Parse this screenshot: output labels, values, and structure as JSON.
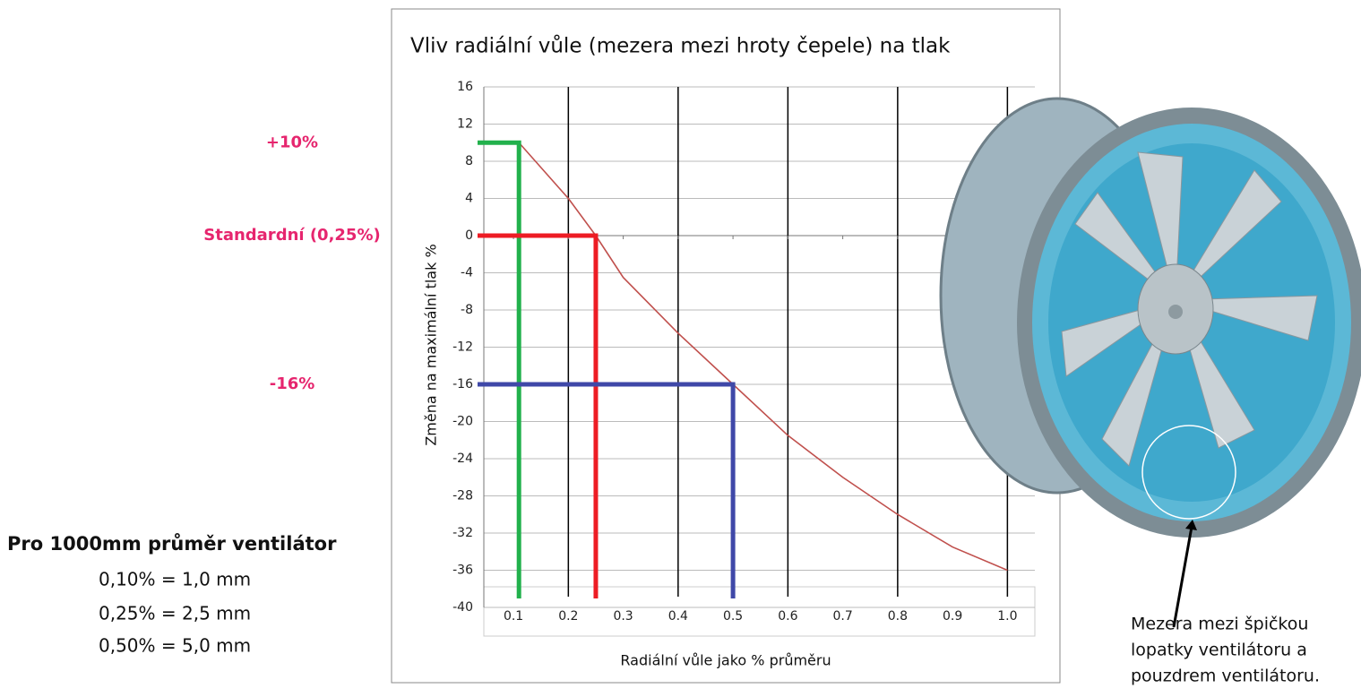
{
  "chart_data": {
    "type": "line",
    "title": "Vliv radiální vůle (mezera mezi hroty čepele) na tlak",
    "x_label": "Radiální vůle jako % průměru",
    "y_label": "Změna na maximální tlak %",
    "x": [
      0.11,
      0.2,
      0.25,
      0.3,
      0.4,
      0.5,
      0.6,
      0.7,
      0.8,
      0.9,
      1.0
    ],
    "series": [
      {
        "color": "#c0504d",
        "values": [
          10,
          4,
          0,
          -4.5,
          -10.5,
          -16,
          -21.5,
          -26,
          -30,
          -33.5,
          -36
        ]
      }
    ],
    "xlim": [
      0.046,
      1.05
    ],
    "ylim": [
      -40,
      16
    ],
    "xticks": [
      0.1,
      0.2,
      0.3,
      0.4,
      0.5,
      0.6,
      0.7,
      0.8,
      0.9,
      {
        "value": 1.0,
        "label": "1.0"
      }
    ],
    "x_grid": [
      0.2,
      0.4,
      0.6,
      0.8,
      1.0
    ],
    "yticks": [
      16,
      12,
      8,
      4,
      0,
      -4,
      -8,
      -12,
      -16,
      -20,
      -24,
      -28,
      -32,
      -36,
      -40
    ],
    "grid": true,
    "reference_lines": [
      {
        "label": "+10%",
        "x": 0.11,
        "y": 10,
        "color": "#22b14c"
      },
      {
        "label": "Standardní (0,25%)",
        "x": 0.25,
        "y": 0,
        "color": "#ed1c24"
      },
      {
        "label": "-16%",
        "x": 0.5,
        "y": -16,
        "color": "#3f48a8"
      }
    ]
  },
  "note": {
    "heading": "Pro 1000mm průměr ventilátor",
    "lines": [
      "0,10% = 1,0 mm",
      "0,25% = 2,5 mm",
      "0,50% = 5,0 mm"
    ]
  },
  "caption": [
    "Mezera mezi špičkou",
    "lopatky ventilátoru a",
    "pouzdrem ventilátoru."
  ]
}
